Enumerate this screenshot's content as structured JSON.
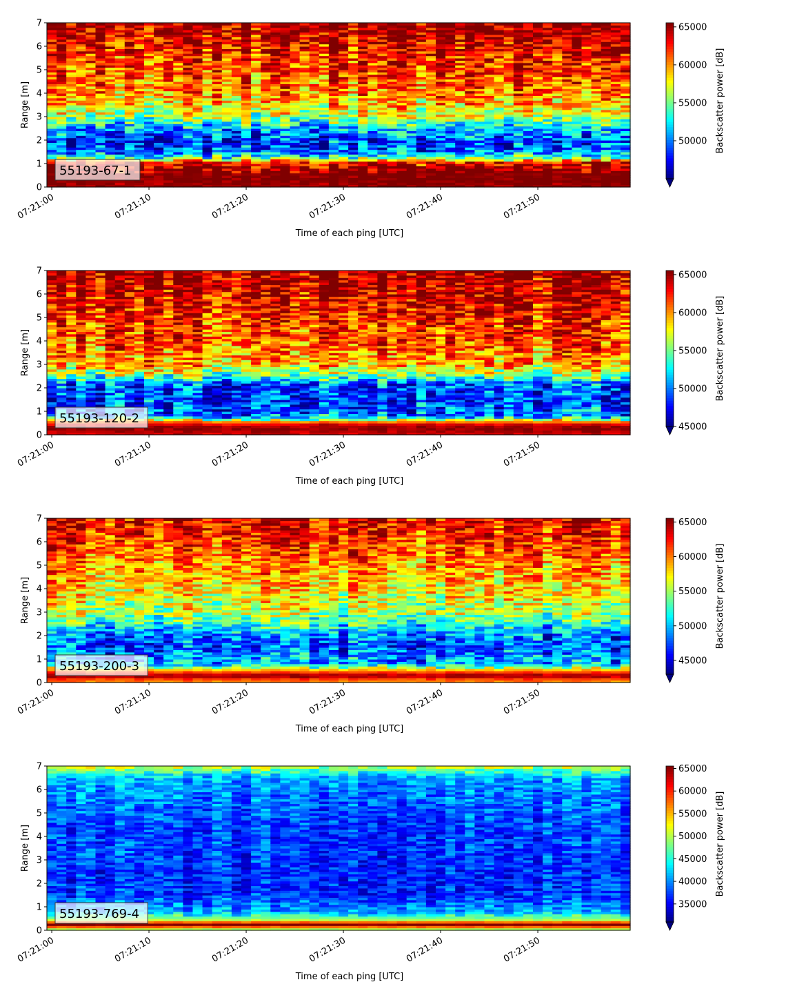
{
  "figure": {
    "xlabel": "Time of each ping [UTC]",
    "ylabel": "Range [m]",
    "colorbar_label": "Backscatter power [dB]"
  },
  "chart_data": [
    {
      "type": "heatmap",
      "panel_label": "55193-67-1",
      "xlabel": "Time of each ping [UTC]",
      "ylabel": "Range [m]",
      "x_ticks": [
        "07:21:00",
        "07:21:10",
        "07:21:20",
        "07:21:30",
        "07:21:40",
        "07:21:50"
      ],
      "xlim_seconds": [
        -0.5,
        59.5
      ],
      "ylim": [
        0,
        7
      ],
      "y_ticks": [
        0,
        1,
        2,
        3,
        4,
        5,
        6,
        7
      ],
      "colorbar": {
        "label": "Backscatter power [dB]",
        "cmap": "jet",
        "range": [
          45000,
          65535
        ],
        "ticks": [
          50000,
          55000,
          60000,
          65000
        ],
        "extend": "min"
      },
      "profile": [
        {
          "range": 0.1,
          "value": 65000
        },
        {
          "range": 0.35,
          "value": 65535
        },
        {
          "range": 0.7,
          "value": 65535
        },
        {
          "range": 1.05,
          "value": 63000
        },
        {
          "range": 1.25,
          "value": 54000
        },
        {
          "range": 1.6,
          "value": 49000
        },
        {
          "range": 2.0,
          "value": 48500
        },
        {
          "range": 2.5,
          "value": 51000
        },
        {
          "range": 3.0,
          "value": 56000
        },
        {
          "range": 3.5,
          "value": 58500
        },
        {
          "range": 4.0,
          "value": 60000
        },
        {
          "range": 5.0,
          "value": 61500
        },
        {
          "range": 6.0,
          "value": 63000
        },
        {
          "range": 7.0,
          "value": 65000
        }
      ],
      "variability": 4500
    },
    {
      "type": "heatmap",
      "panel_label": "55193-120-2",
      "xlabel": "Time of each ping [UTC]",
      "ylabel": "Range [m]",
      "x_ticks": [
        "07:21:00",
        "07:21:10",
        "07:21:20",
        "07:21:30",
        "07:21:40",
        "07:21:50"
      ],
      "xlim_seconds": [
        -0.5,
        59.5
      ],
      "ylim": [
        0,
        7
      ],
      "y_ticks": [
        0,
        1,
        2,
        3,
        4,
        5,
        6,
        7
      ],
      "colorbar": {
        "label": "Backscatter power [dB]",
        "cmap": "jet",
        "range": [
          45000,
          65535
        ],
        "ticks": [
          45000,
          50000,
          55000,
          60000,
          65000
        ],
        "extend": "min"
      },
      "profile": [
        {
          "range": 0.1,
          "value": 64000
        },
        {
          "range": 0.3,
          "value": 65535
        },
        {
          "range": 0.5,
          "value": 63000
        },
        {
          "range": 0.8,
          "value": 50000
        },
        {
          "range": 1.5,
          "value": 48500
        },
        {
          "range": 2.2,
          "value": 49500
        },
        {
          "range": 2.6,
          "value": 56000
        },
        {
          "range": 3.0,
          "value": 59500
        },
        {
          "range": 4.0,
          "value": 61500
        },
        {
          "range": 5.0,
          "value": 62500
        },
        {
          "range": 6.0,
          "value": 64000
        },
        {
          "range": 7.0,
          "value": 65000
        }
      ],
      "variability": 4500
    },
    {
      "type": "heatmap",
      "panel_label": "55193-200-3",
      "xlabel": "Time of each ping [UTC]",
      "ylabel": "Range [m]",
      "x_ticks": [
        "07:21:00",
        "07:21:10",
        "07:21:20",
        "07:21:30",
        "07:21:40",
        "07:21:50"
      ],
      "xlim_seconds": [
        -0.5,
        59.5
      ],
      "ylim": [
        0,
        7
      ],
      "y_ticks": [
        0,
        1,
        2,
        3,
        4,
        5,
        6,
        7
      ],
      "colorbar": {
        "label": "Backscatter power [dB]",
        "cmap": "jet",
        "range": [
          43000,
          65535
        ],
        "ticks": [
          45000,
          50000,
          55000,
          60000,
          65000
        ],
        "extend": "min"
      },
      "profile": [
        {
          "range": 0.1,
          "value": 60000
        },
        {
          "range": 0.3,
          "value": 65535
        },
        {
          "range": 0.5,
          "value": 60000
        },
        {
          "range": 0.8,
          "value": 50000
        },
        {
          "range": 1.5,
          "value": 47500
        },
        {
          "range": 2.0,
          "value": 48500
        },
        {
          "range": 2.5,
          "value": 52000
        },
        {
          "range": 3.0,
          "value": 55500
        },
        {
          "range": 4.0,
          "value": 57500
        },
        {
          "range": 5.0,
          "value": 59500
        },
        {
          "range": 6.0,
          "value": 61500
        },
        {
          "range": 7.0,
          "value": 63000
        }
      ],
      "variability": 4500
    },
    {
      "type": "heatmap",
      "panel_label": "55193-769-4",
      "xlabel": "Time of each ping [UTC]",
      "ylabel": "Range [m]",
      "x_ticks": [
        "07:21:00",
        "07:21:10",
        "07:21:20",
        "07:21:30",
        "07:21:40",
        "07:21:50"
      ],
      "xlim_seconds": [
        -0.5,
        59.5
      ],
      "ylim": [
        0,
        7
      ],
      "y_ticks": [
        0,
        1,
        2,
        3,
        4,
        5,
        6,
        7
      ],
      "colorbar": {
        "label": "Backscatter power [dB]",
        "cmap": "jet",
        "range": [
          31000,
          65535
        ],
        "ticks": [
          35000,
          40000,
          45000,
          50000,
          55000,
          60000,
          65000
        ],
        "extend": "min"
      },
      "profile": [
        {
          "range": 0.05,
          "value": 50000
        },
        {
          "range": 0.25,
          "value": 65535
        },
        {
          "range": 0.45,
          "value": 50000
        },
        {
          "range": 0.8,
          "value": 41000
        },
        {
          "range": 1.5,
          "value": 37000
        },
        {
          "range": 2.5,
          "value": 36500
        },
        {
          "range": 3.5,
          "value": 37500
        },
        {
          "range": 4.5,
          "value": 37500
        },
        {
          "range": 5.5,
          "value": 39000
        },
        {
          "range": 6.5,
          "value": 41000
        },
        {
          "range": 6.9,
          "value": 48000
        },
        {
          "range": 7.0,
          "value": 52000
        }
      ],
      "variability": 4200
    }
  ]
}
